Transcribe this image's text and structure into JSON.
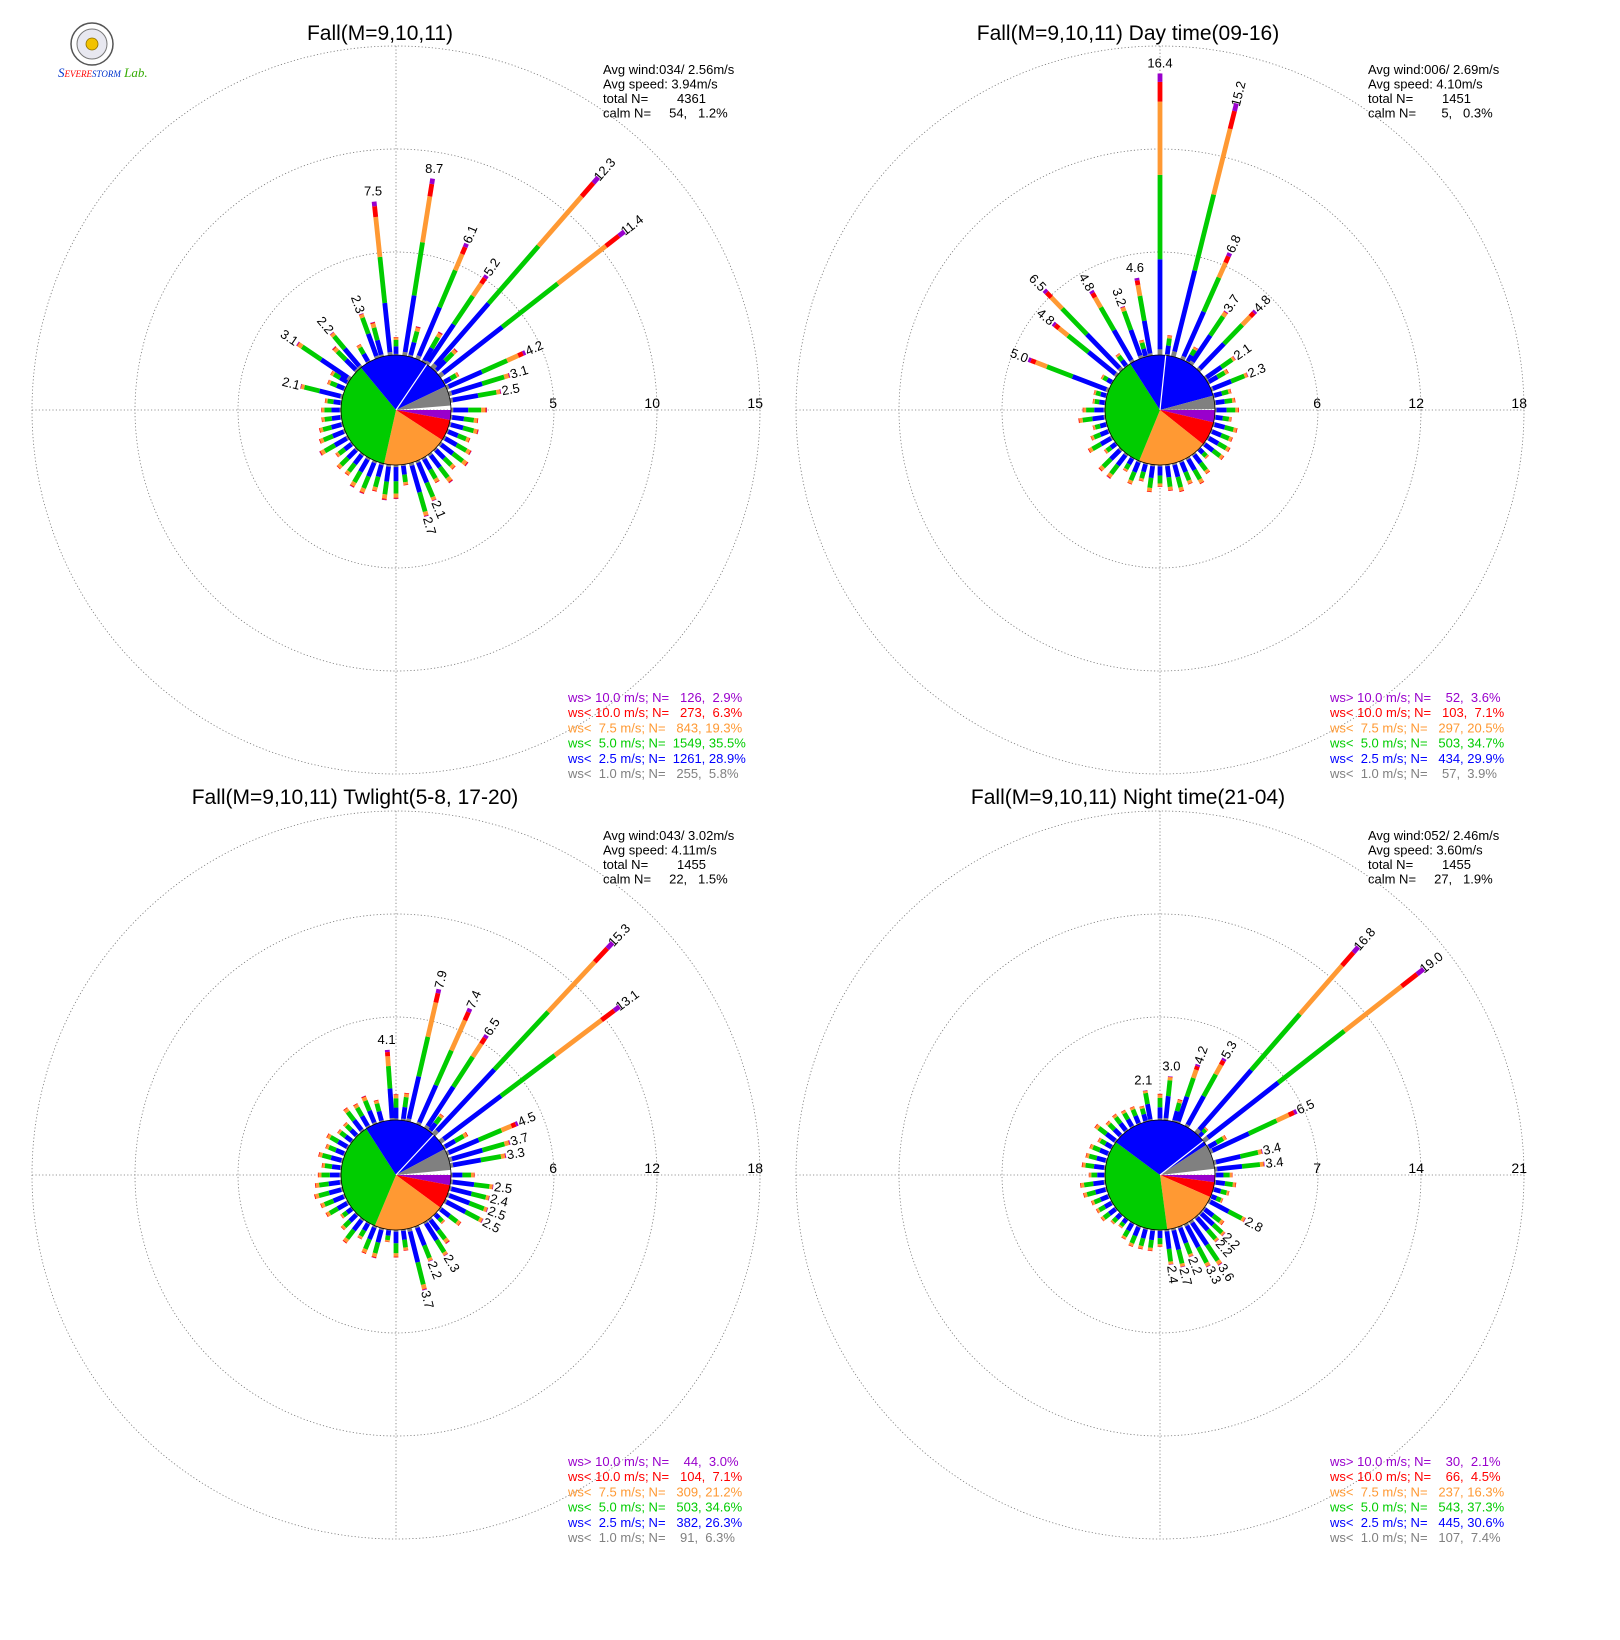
{
  "colors": {
    "gt10": "#9900cc",
    "lt10": "#ff0000",
    "lt7_5": "#ff9933",
    "lt5": "#00cc00",
    "lt2_5": "#0000ff",
    "lt1": "#808080"
  },
  "logo": {
    "icon": "severe-storm-lab-logo",
    "text": "Severe Storm Lab."
  },
  "chart_data": [
    {
      "type": "wind-rose",
      "title": "Fall(M=9,10,11)",
      "stats": [
        "Avg wind:034/ 2.56m/s",
        "Avg speed: 3.94m/s",
        "total N=        4361",
        "calm N=     54,   1.2%"
      ],
      "ring_values": [
        5,
        10,
        15
      ],
      "ring_labels": [
        "5",
        "10",
        "15"
      ],
      "avg_wind_dir_deg": 34,
      "pie": [
        {
          "class": "gt10",
          "percent": 2.9
        },
        {
          "class": "lt10",
          "percent": 6.3
        },
        {
          "class": "lt7_5",
          "percent": 19.3
        },
        {
          "class": "lt5",
          "percent": 35.5
        },
        {
          "class": "lt2_5",
          "percent": 28.9
        },
        {
          "class": "lt1",
          "percent": 5.8
        }
      ],
      "labeled_bars": [
        {
          "dir": 284,
          "total": 2.1,
          "label": "2.1"
        },
        {
          "dir": 304,
          "total": 3.1,
          "label": "3.1"
        },
        {
          "dir": 320,
          "total": 2.2,
          "label": "2.2"
        },
        {
          "dir": 340,
          "total": 2.3,
          "label": "2.3"
        },
        {
          "dir": 354,
          "total": 7.5,
          "label": "7.5"
        },
        {
          "dir": 9,
          "total": 8.7,
          "label": "8.7"
        },
        {
          "dir": 23,
          "total": 6.1,
          "label": "6.1"
        },
        {
          "dir": 34,
          "total": 5.2,
          "label": "5.2"
        },
        {
          "dir": 41,
          "total": 12.3,
          "label": "12.3"
        },
        {
          "dir": 52,
          "total": 11.4,
          "label": "11.4"
        },
        {
          "dir": 66,
          "total": 4.2,
          "label": "4.2"
        },
        {
          "dir": 73,
          "total": 3.1,
          "label": "3.1"
        },
        {
          "dir": 80,
          "total": 2.5,
          "label": "2.5"
        },
        {
          "dir": 157,
          "total": 2.1,
          "label": "2.1"
        },
        {
          "dir": 164,
          "total": 2.7,
          "label": "2.7"
        }
      ],
      "legend": [
        {
          "class": "gt10",
          "text": "ws> 10.0 m/s; N=   126,  2.9%"
        },
        {
          "class": "lt10",
          "text": "ws< 10.0 m/s; N=   273,  6.3%"
        },
        {
          "class": "lt7_5",
          "text": "ws<  7.5 m/s; N=   843, 19.3%"
        },
        {
          "class": "lt5",
          "text": "ws<  5.0 m/s; N=  1549, 35.5%"
        },
        {
          "class": "lt2_5",
          "text": "ws<  2.5 m/s; N=  1261, 28.9%"
        },
        {
          "class": "lt1",
          "text": "ws<  1.0 m/s; N=   255,  5.8%"
        }
      ]
    },
    {
      "type": "wind-rose",
      "title": "Fall(M=9,10,11) Day time(09-16)",
      "stats": [
        "Avg wind:006/ 2.69m/s",
        "Avg speed: 4.10m/s",
        "total N=        1451",
        "calm N=       5,   0.3%"
      ],
      "ring_values": [
        6,
        12,
        18
      ],
      "ring_labels": [
        "6",
        "12",
        "18"
      ],
      "avg_wind_dir_deg": 6,
      "pie": [
        {
          "class": "gt10",
          "percent": 3.6
        },
        {
          "class": "lt10",
          "percent": 7.1
        },
        {
          "class": "lt7_5",
          "percent": 20.5
        },
        {
          "class": "lt5",
          "percent": 34.7
        },
        {
          "class": "lt2_5",
          "percent": 29.9
        },
        {
          "class": "lt1",
          "percent": 3.9
        }
      ],
      "labeled_bars": [
        {
          "dir": 291,
          "total": 5.0,
          "label": "5.0"
        },
        {
          "dir": 309,
          "total": 4.8,
          "label": "4.8"
        },
        {
          "dir": 316,
          "total": 6.5,
          "label": "6.5"
        },
        {
          "dir": 330,
          "total": 4.8,
          "label": "4.8"
        },
        {
          "dir": 340,
          "total": 3.2,
          "label": "3.2"
        },
        {
          "dir": 350,
          "total": 4.6,
          "label": "4.6"
        },
        {
          "dir": 0,
          "total": 16.4,
          "label": "16.4"
        },
        {
          "dir": 14,
          "total": 15.2,
          "label": "15.2"
        },
        {
          "dir": 24,
          "total": 6.8,
          "label": "6.8"
        },
        {
          "dir": 34,
          "total": 3.7,
          "label": "3.7"
        },
        {
          "dir": 44,
          "total": 4.8,
          "label": "4.8"
        },
        {
          "dir": 55,
          "total": 2.1,
          "label": "2.1"
        },
        {
          "dir": 68,
          "total": 2.3,
          "label": "2.3"
        }
      ],
      "legend": [
        {
          "class": "gt10",
          "text": "ws> 10.0 m/s; N=    52,  3.6%"
        },
        {
          "class": "lt10",
          "text": "ws< 10.0 m/s; N=   103,  7.1%"
        },
        {
          "class": "lt7_5",
          "text": "ws<  7.5 m/s; N=   297, 20.5%"
        },
        {
          "class": "lt5",
          "text": "ws<  5.0 m/s; N=   503, 34.7%"
        },
        {
          "class": "lt2_5",
          "text": "ws<  2.5 m/s; N=   434, 29.9%"
        },
        {
          "class": "lt1",
          "text": "ws<  1.0 m/s; N=    57,  3.9%"
        }
      ]
    },
    {
      "type": "wind-rose",
      "title": "Fall(M=9,10,11) Twlight(5-8, 17-20)",
      "stats": [
        "Avg wind:043/ 3.02m/s",
        "Avg speed: 4.11m/s",
        "total N=        1455",
        "calm N=     22,   1.5%"
      ],
      "ring_values": [
        6,
        12,
        18
      ],
      "ring_labels": [
        "6",
        "12",
        "18"
      ],
      "avg_wind_dir_deg": 43,
      "pie": [
        {
          "class": "gt10",
          "percent": 3.0
        },
        {
          "class": "lt10",
          "percent": 7.1
        },
        {
          "class": "lt7_5",
          "percent": 21.2
        },
        {
          "class": "lt5",
          "percent": 34.6
        },
        {
          "class": "lt2_5",
          "percent": 26.3
        },
        {
          "class": "lt1",
          "percent": 6.3
        }
      ],
      "labeled_bars": [
        {
          "dir": 356,
          "total": 4.1,
          "label": "4.1"
        },
        {
          "dir": 13,
          "total": 7.9,
          "label": "7.9"
        },
        {
          "dir": 24,
          "total": 7.4,
          "label": "7.4"
        },
        {
          "dir": 33,
          "total": 6.5,
          "label": "6.5"
        },
        {
          "dir": 43,
          "total": 15.3,
          "label": "15.3"
        },
        {
          "dir": 53,
          "total": 13.1,
          "label": "13.1"
        },
        {
          "dir": 67,
          "total": 4.5,
          "label": "4.5"
        },
        {
          "dir": 74,
          "total": 3.7,
          "label": "3.7"
        },
        {
          "dir": 80,
          "total": 3.3,
          "label": "3.3"
        },
        {
          "dir": 97,
          "total": 2.5,
          "label": "2.5"
        },
        {
          "dir": 104,
          "total": 2.4,
          "label": "2.4"
        },
        {
          "dir": 111,
          "total": 2.5,
          "label": "2.5"
        },
        {
          "dir": 118,
          "total": 2.5,
          "label": "2.5"
        },
        {
          "dir": 148,
          "total": 2.3,
          "label": "2.3"
        },
        {
          "dir": 158,
          "total": 2.2,
          "label": "2.2"
        },
        {
          "dir": 166,
          "total": 3.7,
          "label": "3.7"
        }
      ],
      "legend": [
        {
          "class": "gt10",
          "text": "ws> 10.0 m/s; N=    44,  3.0%"
        },
        {
          "class": "lt10",
          "text": "ws< 10.0 m/s; N=   104,  7.1%"
        },
        {
          "class": "lt7_5",
          "text": "ws<  7.5 m/s; N=   309, 21.2%"
        },
        {
          "class": "lt5",
          "text": "ws<  5.0 m/s; N=   503, 34.6%"
        },
        {
          "class": "lt2_5",
          "text": "ws<  2.5 m/s; N=   382, 26.3%"
        },
        {
          "class": "lt1",
          "text": "ws<  1.0 m/s; N=    91,  6.3%"
        }
      ]
    },
    {
      "type": "wind-rose",
      "title": "Fall(M=9,10,11) Night time(21-04)",
      "stats": [
        "Avg wind:052/ 2.46m/s",
        "Avg speed: 3.60m/s",
        "total N=        1455",
        "calm N=     27,   1.9%"
      ],
      "ring_values": [
        7,
        14,
        21
      ],
      "ring_labels": [
        "7",
        "14",
        "21"
      ],
      "avg_wind_dir_deg": 52,
      "pie": [
        {
          "class": "gt10",
          "percent": 2.1
        },
        {
          "class": "lt10",
          "percent": 4.5
        },
        {
          "class": "lt7_5",
          "percent": 16.3
        },
        {
          "class": "lt5",
          "percent": 37.3
        },
        {
          "class": "lt2_5",
          "percent": 30.6
        },
        {
          "class": "lt1",
          "percent": 7.4
        }
      ],
      "labeled_bars": [
        {
          "dir": 350,
          "total": 2.1,
          "label": "2.1"
        },
        {
          "dir": 6,
          "total": 3.0,
          "label": "3.0"
        },
        {
          "dir": 19,
          "total": 4.2,
          "label": "4.2"
        },
        {
          "dir": 29,
          "total": 5.3,
          "label": "5.3"
        },
        {
          "dir": 41,
          "total": 16.8,
          "label": "16.8"
        },
        {
          "dir": 52,
          "total": 19.0,
          "label": "19.0"
        },
        {
          "dir": 65,
          "total": 6.5,
          "label": "6.5"
        },
        {
          "dir": 77,
          "total": 3.4,
          "label": "3.4"
        },
        {
          "dir": 84,
          "total": 3.4,
          "label": "3.4"
        },
        {
          "dir": 118,
          "total": 2.8,
          "label": "2.8"
        },
        {
          "dir": 133,
          "total": 2.2,
          "label": "2.2"
        },
        {
          "dir": 139,
          "total": 2.2,
          "label": "2.2"
        },
        {
          "dir": 146,
          "total": 3.6,
          "label": "3.6"
        },
        {
          "dir": 152,
          "total": 3.3,
          "label": "3.3"
        },
        {
          "dir": 159,
          "total": 2.2,
          "label": "2.2"
        },
        {
          "dir": 166,
          "total": 2.7,
          "label": "2.7"
        },
        {
          "dir": 173,
          "total": 2.4,
          "label": "2.4"
        }
      ],
      "legend": [
        {
          "class": "gt10",
          "text": "ws> 10.0 m/s; N=    30,  2.1%"
        },
        {
          "class": "lt10",
          "text": "ws< 10.0 m/s; N=    66,  4.5%"
        },
        {
          "class": "lt7_5",
          "text": "ws<  7.5 m/s; N=   237, 16.3%"
        },
        {
          "class": "lt5",
          "text": "ws<  5.0 m/s; N=   543, 37.3%"
        },
        {
          "class": "lt2_5",
          "text": "ws<  2.5 m/s; N=   445, 30.6%"
        },
        {
          "class": "lt1",
          "text": "ws<  1.0 m/s; N=   107,  7.4%"
        }
      ]
    }
  ]
}
